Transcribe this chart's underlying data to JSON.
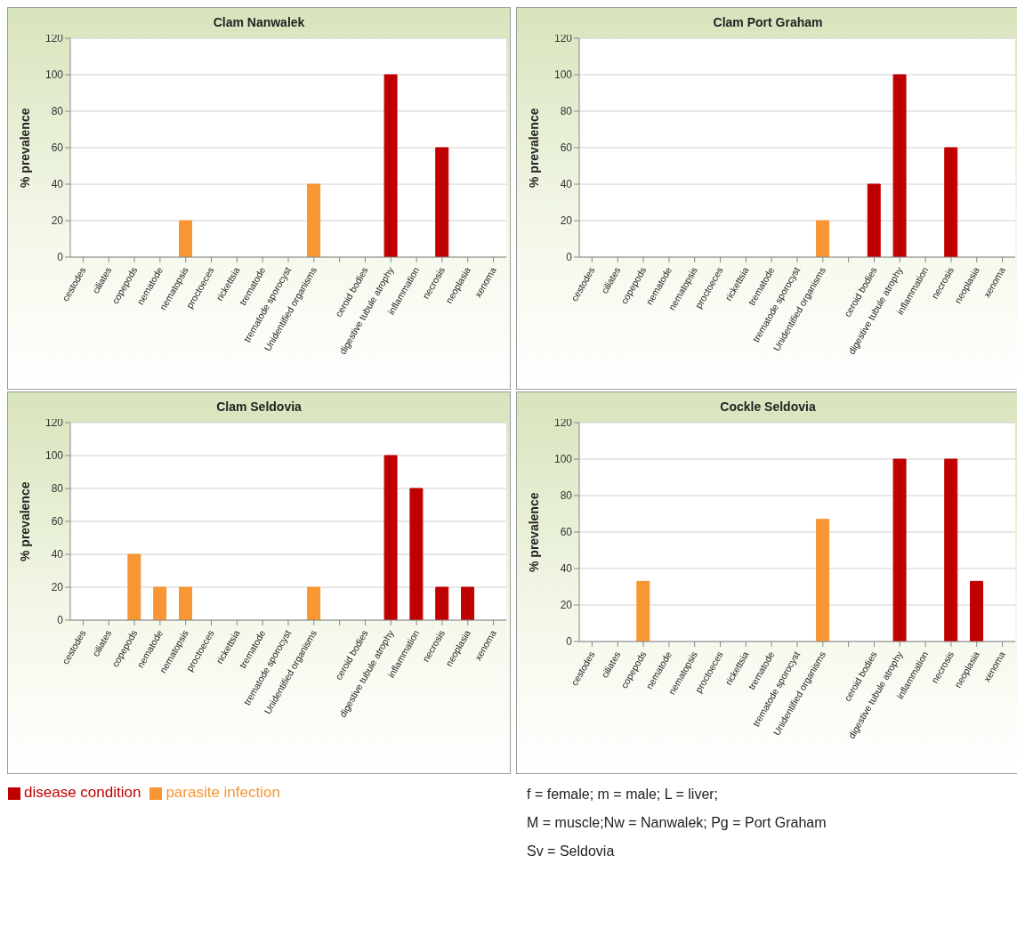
{
  "chart_data": [
    {
      "type": "bar",
      "title": "Clam Nanwalek",
      "ylabel": "% prevalence",
      "categories": [
        "cestodes",
        "ciliates",
        "copepods",
        "nematode",
        "nematopsis",
        "proctoeces",
        "rickettsia",
        "trematode",
        "trematode sporocyst",
        "Unidentified organisms",
        null,
        "ceroid bodies",
        "digestive tubule atrophy",
        "inflammation",
        "necrosis",
        "neoplasia",
        "xenoma"
      ],
      "stacked": true,
      "series": [
        {
          "color": "#c00000",
          "values": [
            null,
            null,
            null,
            null,
            null,
            null,
            null,
            null,
            null,
            null,
            null,
            0,
            100,
            0,
            60,
            0,
            0
          ]
        },
        {
          "color": "#f79632",
          "values": [
            0,
            0,
            0,
            0,
            20,
            0,
            0,
            0,
            0,
            40,
            null,
            null,
            null,
            null,
            null,
            null,
            null
          ]
        }
      ],
      "ylim": [
        0,
        120
      ],
      "yticks": [
        0,
        20,
        40,
        60,
        80,
        100,
        120
      ],
      "grid": "y",
      "legend": false
    },
    {
      "type": "bar",
      "title": "Clam Port Graham",
      "ylabel": "% prevalence",
      "categories": [
        "cestodes",
        "ciliates",
        "copepods",
        "nematode",
        "nematopsis",
        "proctoeces",
        "rickettsia",
        "trematode",
        "trematode sporocyst",
        "Unidentified organisms",
        null,
        "ceroid bodies",
        "digestive tubule atrophy",
        "inflammation",
        "necrosis",
        "neoplasia",
        "xenoma"
      ],
      "stacked": true,
      "series": [
        {
          "color": "#c00000",
          "values": [
            null,
            null,
            null,
            null,
            null,
            null,
            null,
            null,
            null,
            null,
            null,
            40,
            100,
            0,
            60,
            0,
            0
          ]
        },
        {
          "color": "#f79632",
          "values": [
            0,
            0,
            0,
            0,
            0,
            0,
            0,
            0,
            0,
            20,
            null,
            null,
            null,
            null,
            null,
            null,
            null
          ]
        }
      ],
      "ylim": [
        0,
        120
      ],
      "yticks": [
        0,
        20,
        40,
        60,
        80,
        100,
        120
      ],
      "grid": "y",
      "legend": false
    },
    {
      "type": "bar",
      "title": "Clam Seldovia",
      "ylabel": "% prevalence",
      "categories": [
        "cestodes",
        "ciliates",
        "copepods",
        "nematode",
        "nematopsis",
        "proctoeces",
        "rickettsia",
        "trematode",
        "trematode sporocyst",
        "Unidentified organisms",
        null,
        "ceroid bodies",
        "digestive tubule atrophy",
        "inflammation",
        "necrosis",
        "neoplasia",
        "xenoma"
      ],
      "stacked": true,
      "series": [
        {
          "name": "disease condition",
          "color": "#c00000",
          "values": [
            null,
            null,
            null,
            null,
            null,
            null,
            null,
            null,
            null,
            null,
            null,
            0,
            100,
            80,
            20,
            20,
            0
          ]
        },
        {
          "name": "parasite infection",
          "color": "#f79632",
          "values": [
            0,
            0,
            40,
            20,
            20,
            0,
            0,
            0,
            0,
            20,
            null,
            null,
            null,
            null,
            null,
            null,
            null
          ]
        }
      ],
      "ylim": [
        0,
        120
      ],
      "yticks": [
        0,
        20,
        40,
        60,
        80,
        100,
        120
      ],
      "grid": "y",
      "legend": "bottom"
    },
    {
      "type": "bar",
      "title": "Cockle Seldovia",
      "ylabel": "% prevalence",
      "categories": [
        "cestodes",
        "ciliates",
        "copepods",
        "nematode",
        "nematopsis",
        "proctoeces",
        "rickettsia",
        "trematode",
        "trematode sporocyst",
        "Unidentified organisms",
        null,
        "ceroid bodies",
        "digestive tubule atrophy",
        "inflammation",
        "necrosis",
        "neoplasia",
        "xenoma"
      ],
      "stacked": true,
      "series": [
        {
          "color": "#c00000",
          "values": [
            null,
            null,
            null,
            null,
            null,
            null,
            null,
            null,
            null,
            null,
            null,
            0,
            100,
            0,
            100,
            33,
            0
          ]
        },
        {
          "color": "#f79632",
          "values": [
            0,
            0,
            33,
            0,
            0,
            0,
            0,
            0,
            0,
            67,
            null,
            null,
            null,
            null,
            null,
            null,
            null
          ]
        }
      ],
      "ylim": [
        0,
        120
      ],
      "yticks": [
        0,
        20,
        40,
        60,
        80,
        100,
        120
      ],
      "grid": "y",
      "legend": false,
      "annotations": [
        "f = female; m = male; L = liver;",
        "M = muscle;Nw = Nanwalek; Pg = Port Graham",
        "Sv = Seldovia"
      ]
    }
  ]
}
